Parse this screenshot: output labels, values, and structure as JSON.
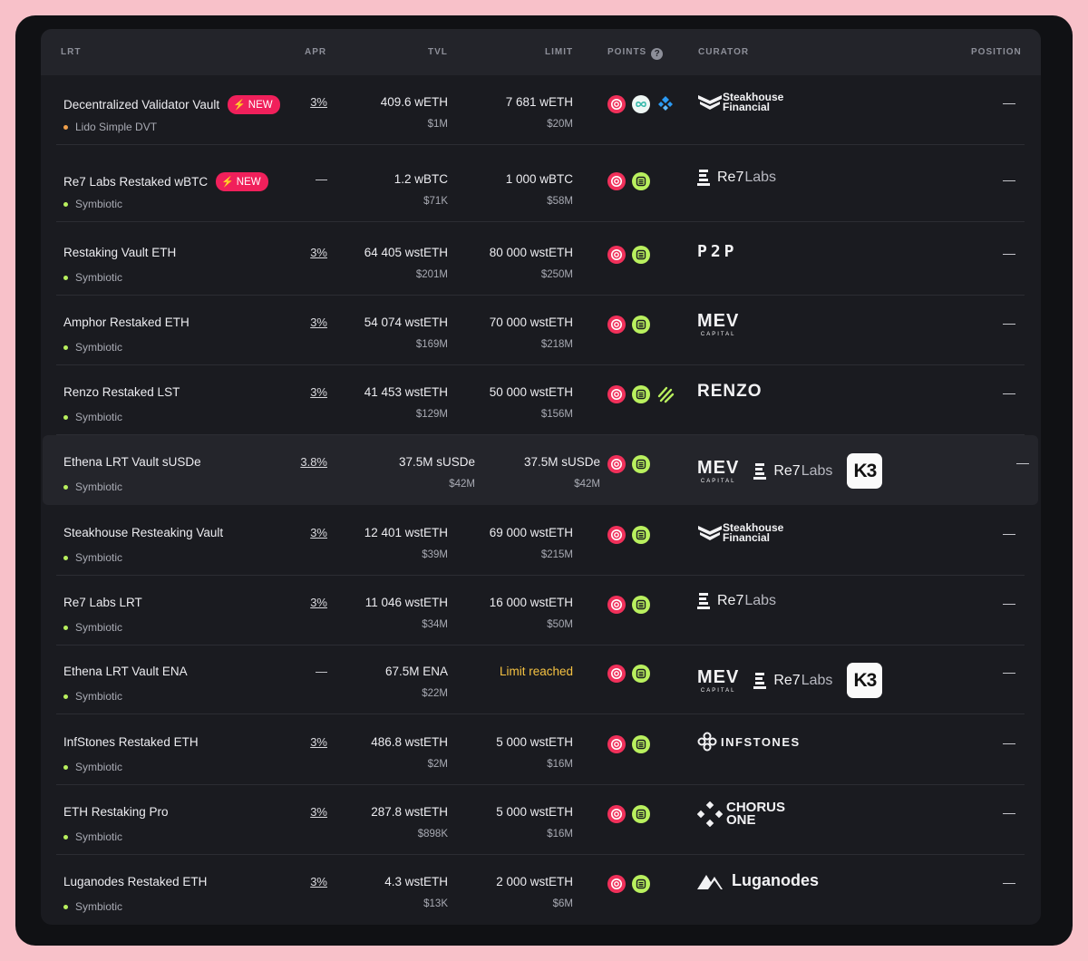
{
  "header": {
    "lrt": "LRT",
    "apr": "APR",
    "tvl": "TVL",
    "limit": "LIMIT",
    "points": "POINTS",
    "points_help": "?",
    "curator": "CURATOR",
    "position": "POSITION"
  },
  "colors": {
    "lido_dot": "#f0a04b",
    "symbiotic_dot": "#b9f05e",
    "new_badge": "#f0205b",
    "limit_reached": "#f5c242"
  },
  "rows": [
    {
      "name": "Decentralized Validator Vault",
      "badge": "NEW",
      "network": "Lido Simple DVT",
      "network_dot": "orange",
      "apr": "3%",
      "tvl": "409.6 wETH",
      "tvl_usd": "$1M",
      "limit": "7 681 wETH",
      "limit_usd": "$20M",
      "points": [
        "mellow-icon",
        "obol-icon",
        "ssv-icon"
      ],
      "curators": [
        "steakhouse"
      ],
      "position": "—"
    },
    {
      "name": "Re7 Labs Restaked wBTC",
      "badge": "NEW",
      "network": "Symbiotic",
      "network_dot": "green",
      "apr": "—",
      "tvl": "1.2 wBTC",
      "tvl_usd": "$71K",
      "limit": "1 000 wBTC",
      "limit_usd": "$58M",
      "points": [
        "mellow-icon",
        "symbiotic-icon"
      ],
      "curators": [
        "re7"
      ],
      "position": "—"
    },
    {
      "name": "Restaking Vault ETH",
      "badge": "",
      "network": "Symbiotic",
      "network_dot": "green",
      "apr": "3%",
      "tvl": "64 405 wstETH",
      "tvl_usd": "$201M",
      "limit": "80 000 wstETH",
      "limit_usd": "$250M",
      "points": [
        "mellow-icon",
        "symbiotic-icon"
      ],
      "curators": [
        "p2p"
      ],
      "position": "—"
    },
    {
      "name": "Amphor Restaked ETH",
      "badge": "",
      "network": "Symbiotic",
      "network_dot": "green",
      "apr": "3%",
      "tvl": "54 074 wstETH",
      "tvl_usd": "$169M",
      "limit": "70 000 wstETH",
      "limit_usd": "$218M",
      "points": [
        "mellow-icon",
        "symbiotic-icon"
      ],
      "curators": [
        "mev"
      ],
      "position": "—"
    },
    {
      "name": "Renzo Restaked LST",
      "badge": "",
      "network": "Symbiotic",
      "network_dot": "green",
      "apr": "3%",
      "tvl": "41 453 wstETH",
      "tvl_usd": "$129M",
      "limit": "50 000 wstETH",
      "limit_usd": "$156M",
      "points": [
        "mellow-icon",
        "symbiotic-icon",
        "renzo-icon"
      ],
      "curators": [
        "renzo"
      ],
      "position": "—"
    },
    {
      "name": "Ethena LRT Vault sUSDe",
      "badge": "",
      "network": "Symbiotic",
      "network_dot": "green",
      "apr": "3.8%",
      "tvl": "37.5M sUSDe",
      "tvl_usd": "$42M",
      "limit": "37.5M sUSDe",
      "limit_usd": "$42M",
      "points": [
        "mellow-icon",
        "symbiotic-icon"
      ],
      "curators": [
        "mev",
        "re7",
        "k3"
      ],
      "position": "—",
      "highlight": true
    },
    {
      "name": "Steakhouse Resteaking Vault",
      "badge": "",
      "network": "Symbiotic",
      "network_dot": "green",
      "apr": "3%",
      "tvl": "12 401 wstETH",
      "tvl_usd": "$39M",
      "limit": "69 000 wstETH",
      "limit_usd": "$215M",
      "points": [
        "mellow-icon",
        "symbiotic-icon"
      ],
      "curators": [
        "steakhouse"
      ],
      "position": "—"
    },
    {
      "name": "Re7 Labs LRT",
      "badge": "",
      "network": "Symbiotic",
      "network_dot": "green",
      "apr": "3%",
      "tvl": "11 046 wstETH",
      "tvl_usd": "$34M",
      "limit": "16 000 wstETH",
      "limit_usd": "$50M",
      "points": [
        "mellow-icon",
        "symbiotic-icon"
      ],
      "curators": [
        "re7"
      ],
      "position": "—"
    },
    {
      "name": "Ethena LRT Vault ENA",
      "badge": "",
      "network": "Symbiotic",
      "network_dot": "green",
      "apr": "—",
      "tvl": "67.5M ENA",
      "tvl_usd": "$22M",
      "limit": "Limit reached",
      "limit_usd": "",
      "limit_reached": true,
      "points": [
        "mellow-icon",
        "symbiotic-icon"
      ],
      "curators": [
        "mev",
        "re7",
        "k3"
      ],
      "position": "—"
    },
    {
      "name": "InfStones Restaked ETH",
      "badge": "",
      "network": "Symbiotic",
      "network_dot": "green",
      "apr": "3%",
      "tvl": "486.8 wstETH",
      "tvl_usd": "$2M",
      "limit": "5 000 wstETH",
      "limit_usd": "$16M",
      "points": [
        "mellow-icon",
        "symbiotic-icon"
      ],
      "curators": [
        "infstones"
      ],
      "position": "—"
    },
    {
      "name": "ETH Restaking Pro",
      "badge": "",
      "network": "Symbiotic",
      "network_dot": "green",
      "apr": "3%",
      "tvl": "287.8 wstETH",
      "tvl_usd": "$898K",
      "limit": "5 000 wstETH",
      "limit_usd": "$16M",
      "points": [
        "mellow-icon",
        "symbiotic-icon"
      ],
      "curators": [
        "chorus"
      ],
      "position": "—"
    },
    {
      "name": "Luganodes Restaked ETH",
      "badge": "",
      "network": "Symbiotic",
      "network_dot": "green",
      "apr": "3%",
      "tvl": "4.3 wstETH",
      "tvl_usd": "$13K",
      "limit": "2 000 wstETH",
      "limit_usd": "$6M",
      "points": [
        "mellow-icon",
        "symbiotic-icon"
      ],
      "curators": [
        "luganodes"
      ],
      "position": "—"
    }
  ],
  "curator_logos": {
    "steakhouse": {
      "line1": "Steakhouse",
      "line2": "Financial"
    },
    "re7": {
      "text": "Re7",
      "text2": "Labs"
    },
    "p2p": {
      "text": "P2P"
    },
    "mev": {
      "text": "MEV",
      "sub": "CAPITAL"
    },
    "renzo": {
      "text": "RENZO"
    },
    "k3": {
      "text": "K3"
    },
    "infstones": {
      "text": "INFSTONES"
    },
    "chorus": {
      "line1": "CHORUS",
      "line2": "ONE"
    },
    "luganodes": {
      "text": "Luganodes"
    }
  }
}
